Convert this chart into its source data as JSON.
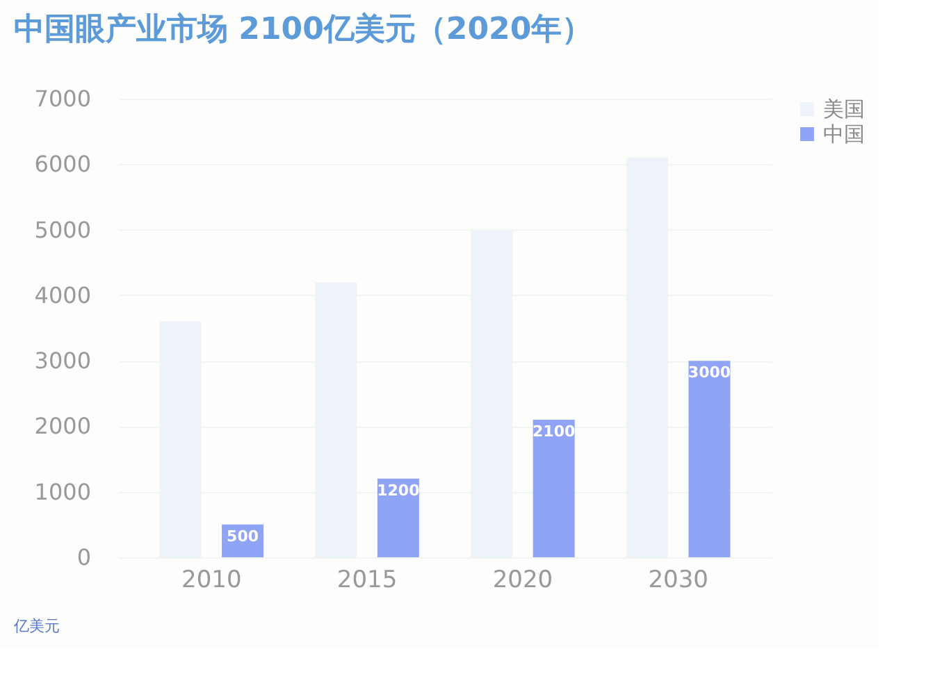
{
  "chart_data": {
    "type": "bar",
    "title": "中国眼产业市场 2100亿美元（2020年）",
    "ylabel": "亿美元",
    "categories": [
      "2010",
      "2015",
      "2020",
      "2030"
    ],
    "series": [
      {
        "name": "美国",
        "color": "#eef3fa",
        "values": [
          3600,
          4200,
          5000,
          6100
        ]
      },
      {
        "name": "中国",
        "color": "#8fa4f5",
        "values": [
          500,
          1200,
          2100,
          3000
        ],
        "value_labels": [
          "500",
          "1200",
          "2100",
          "3000"
        ]
      }
    ],
    "ylim": [
      0,
      7000
    ],
    "yticks": [
      0,
      1000,
      2000,
      3000,
      4000,
      5000,
      6000,
      7000
    ],
    "grid": "y",
    "legend": "right"
  }
}
